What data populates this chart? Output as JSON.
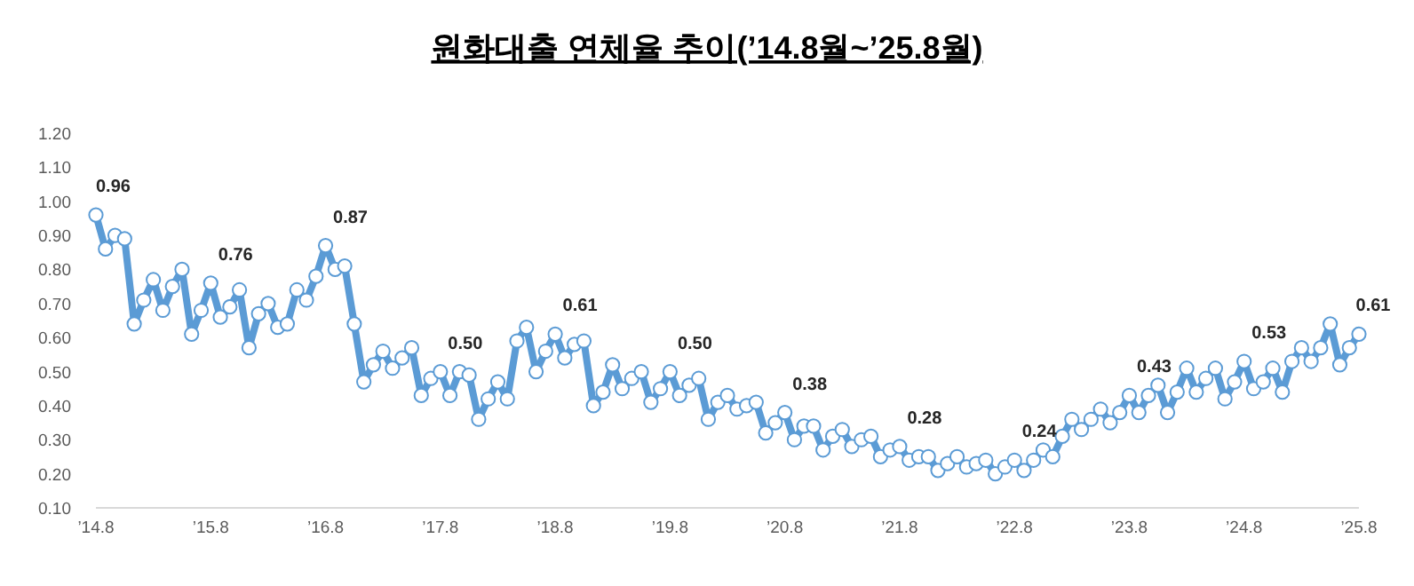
{
  "chart_data": {
    "type": "line",
    "title": "원화대출 연체율 추이(’14.8월~’25.8월)",
    "x": [
      "2014-08",
      "2014-09",
      "2014-10",
      "2014-11",
      "2014-12",
      "2015-01",
      "2015-02",
      "2015-03",
      "2015-04",
      "2015-05",
      "2015-06",
      "2015-07",
      "2015-08",
      "2015-09",
      "2015-10",
      "2015-11",
      "2015-12",
      "2016-01",
      "2016-02",
      "2016-03",
      "2016-04",
      "2016-05",
      "2016-06",
      "2016-07",
      "2016-08",
      "2016-09",
      "2016-10",
      "2016-11",
      "2016-12",
      "2017-01",
      "2017-02",
      "2017-03",
      "2017-04",
      "2017-05",
      "2017-06",
      "2017-07",
      "2017-08",
      "2017-09",
      "2017-10",
      "2017-11",
      "2017-12",
      "2018-01",
      "2018-02",
      "2018-03",
      "2018-04",
      "2018-05",
      "2018-06",
      "2018-07",
      "2018-08",
      "2018-09",
      "2018-10",
      "2018-11",
      "2018-12",
      "2019-01",
      "2019-02",
      "2019-03",
      "2019-04",
      "2019-05",
      "2019-06",
      "2019-07",
      "2019-08",
      "2019-09",
      "2019-10",
      "2019-11",
      "2019-12",
      "2020-01",
      "2020-02",
      "2020-03",
      "2020-04",
      "2020-05",
      "2020-06",
      "2020-07",
      "2020-08",
      "2020-09",
      "2020-10",
      "2020-11",
      "2020-12",
      "2021-01",
      "2021-02",
      "2021-03",
      "2021-04",
      "2021-05",
      "2021-06",
      "2021-07",
      "2021-08",
      "2021-09",
      "2021-10",
      "2021-11",
      "2021-12",
      "2022-01",
      "2022-02",
      "2022-03",
      "2022-04",
      "2022-05",
      "2022-06",
      "2022-07",
      "2022-08",
      "2022-09",
      "2022-10",
      "2022-11",
      "2022-12",
      "2023-01",
      "2023-02",
      "2023-03",
      "2023-04",
      "2023-05",
      "2023-06",
      "2023-07",
      "2023-08",
      "2023-09",
      "2023-10",
      "2023-11",
      "2023-12",
      "2024-01",
      "2024-02",
      "2024-03",
      "2024-04",
      "2024-05",
      "2024-06",
      "2024-07",
      "2024-08",
      "2024-09",
      "2024-10",
      "2024-11",
      "2024-12",
      "2025-01",
      "2025-02",
      "2025-03",
      "2025-04",
      "2025-05",
      "2025-06",
      "2025-07",
      "2025-08"
    ],
    "series": [
      {
        "color": "#5b9bd5",
        "values": [
          0.96,
          0.86,
          0.9,
          0.89,
          0.64,
          0.71,
          0.77,
          0.68,
          0.75,
          0.8,
          0.61,
          0.68,
          0.76,
          0.66,
          0.69,
          0.74,
          0.57,
          0.67,
          0.7,
          0.63,
          0.64,
          0.74,
          0.71,
          0.78,
          0.87,
          0.8,
          0.81,
          0.64,
          0.47,
          0.52,
          0.56,
          0.51,
          0.54,
          0.57,
          0.43,
          0.48,
          0.5,
          0.43,
          0.5,
          0.49,
          0.36,
          0.42,
          0.47,
          0.42,
          0.59,
          0.63,
          0.5,
          0.56,
          0.61,
          0.54,
          0.58,
          0.59,
          0.4,
          0.44,
          0.52,
          0.45,
          0.48,
          0.5,
          0.41,
          0.45,
          0.5,
          0.43,
          0.46,
          0.48,
          0.36,
          0.41,
          0.43,
          0.39,
          0.4,
          0.41,
          0.32,
          0.35,
          0.38,
          0.3,
          0.34,
          0.34,
          0.27,
          0.31,
          0.33,
          0.28,
          0.3,
          0.31,
          0.25,
          0.27,
          0.28,
          0.24,
          0.25,
          0.25,
          0.21,
          0.23,
          0.25,
          0.22,
          0.23,
          0.24,
          0.2,
          0.22,
          0.24,
          0.21,
          0.24,
          0.27,
          0.25,
          0.31,
          0.36,
          0.33,
          0.36,
          0.39,
          0.35,
          0.38,
          0.43,
          0.38,
          0.43,
          0.46,
          0.38,
          0.44,
          0.51,
          0.44,
          0.48,
          0.51,
          0.42,
          0.47,
          0.53,
          0.45,
          0.47,
          0.51,
          0.44,
          0.53,
          0.57,
          0.53,
          0.57,
          0.64,
          0.52,
          0.57,
          0.61
        ],
        "value_labels": [
          "0.96",
          null,
          null,
          null,
          null,
          null,
          null,
          null,
          null,
          null,
          null,
          null,
          "0.76",
          null,
          null,
          null,
          null,
          null,
          null,
          null,
          null,
          null,
          null,
          null,
          "0.87",
          null,
          null,
          null,
          null,
          null,
          null,
          null,
          null,
          null,
          null,
          null,
          "0.50",
          null,
          null,
          null,
          null,
          null,
          null,
          null,
          null,
          null,
          null,
          null,
          "0.61",
          null,
          null,
          null,
          null,
          null,
          null,
          null,
          null,
          null,
          null,
          null,
          "0.50",
          null,
          null,
          null,
          null,
          null,
          null,
          null,
          null,
          null,
          null,
          null,
          "0.38",
          null,
          null,
          null,
          null,
          null,
          null,
          null,
          null,
          null,
          null,
          null,
          "0.28",
          null,
          null,
          null,
          null,
          null,
          null,
          null,
          null,
          null,
          null,
          null,
          "0.24",
          null,
          null,
          null,
          null,
          null,
          null,
          null,
          null,
          null,
          null,
          null,
          "0.43",
          null,
          null,
          null,
          null,
          null,
          null,
          null,
          null,
          null,
          null,
          null,
          "0.53",
          null,
          null,
          null,
          null,
          null,
          null,
          null,
          null,
          null,
          null,
          null,
          "0.61"
        ]
      }
    ],
    "marker": "circle",
    "line_style": "solid",
    "xlim": [
      "2014-08",
      "2025-08"
    ],
    "xticks": [
      {
        "value": "2014-08",
        "label": "’14.8"
      },
      {
        "value": "2015-08",
        "label": "’15.8"
      },
      {
        "value": "2016-08",
        "label": "’16.8"
      },
      {
        "value": "2017-08",
        "label": "’17.8"
      },
      {
        "value": "2018-08",
        "label": "’18.8"
      },
      {
        "value": "2019-08",
        "label": "’19.8"
      },
      {
        "value": "2020-08",
        "label": "’20.8"
      },
      {
        "value": "2021-08",
        "label": "’21.8"
      },
      {
        "value": "2022-08",
        "label": "’22.8"
      },
      {
        "value": "2023-08",
        "label": "’23.8"
      },
      {
        "value": "2024-08",
        "label": "’24.8"
      },
      {
        "value": "2025-08",
        "label": "’25.8"
      }
    ],
    "ylim": [
      0.1,
      1.2
    ],
    "yticks": [
      {
        "value": 0.1,
        "label": "0.10"
      },
      {
        "value": 0.2,
        "label": "0.20"
      },
      {
        "value": 0.3,
        "label": "0.30"
      },
      {
        "value": 0.4,
        "label": "0.40"
      },
      {
        "value": 0.5,
        "label": "0.50"
      },
      {
        "value": 0.6,
        "label": "0.60"
      },
      {
        "value": 0.7,
        "label": "0.70"
      },
      {
        "value": 0.8,
        "label": "0.80"
      },
      {
        "value": 0.9,
        "label": "0.90"
      },
      {
        "value": 1.0,
        "label": "1.00"
      },
      {
        "value": 1.1,
        "label": "1.10"
      },
      {
        "value": 1.2,
        "label": "1.20"
      }
    ],
    "grid": false
  }
}
